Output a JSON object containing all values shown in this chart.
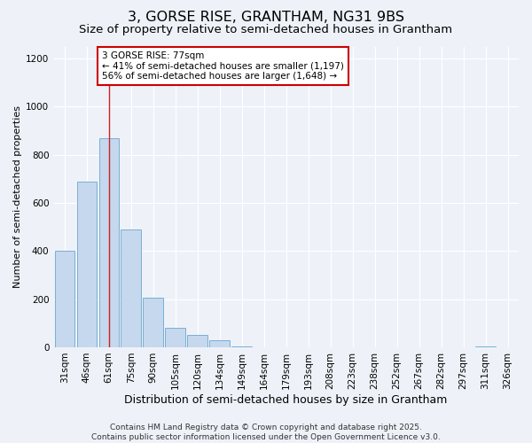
{
  "title": "3, GORSE RISE, GRANTHAM, NG31 9BS",
  "subtitle": "Size of property relative to semi-detached houses in Grantham",
  "xlabel": "Distribution of semi-detached houses by size in Grantham",
  "ylabel": "Number of semi-detached properties",
  "categories": [
    "31sqm",
    "46sqm",
    "61sqm",
    "75sqm",
    "90sqm",
    "105sqm",
    "120sqm",
    "134sqm",
    "149sqm",
    "164sqm",
    "179sqm",
    "193sqm",
    "208sqm",
    "223sqm",
    "238sqm",
    "252sqm",
    "267sqm",
    "282sqm",
    "297sqm",
    "311sqm",
    "326sqm"
  ],
  "values": [
    400,
    690,
    870,
    490,
    205,
    80,
    50,
    30,
    5,
    0,
    0,
    0,
    0,
    0,
    0,
    0,
    0,
    0,
    0,
    5,
    0
  ],
  "bar_color": "#c5d8ed",
  "bar_edge_color": "#7aafd4",
  "property_bin_index": 2,
  "annotation_line1": "3 GORSE RISE: 77sqm",
  "annotation_line2": "← 41% of semi-detached houses are smaller (1,197)",
  "annotation_line3": "56% of semi-detached houses are larger (1,648) →",
  "annotation_box_color": "#ffffff",
  "annotation_box_edge": "#cc0000",
  "vline_color": "#cc2222",
  "ylim": [
    0,
    1250
  ],
  "yticks": [
    0,
    200,
    400,
    600,
    800,
    1000,
    1200
  ],
  "background_color": "#eef2f8",
  "grid_color": "#ffffff",
  "footer": "Contains HM Land Registry data © Crown copyright and database right 2025.\nContains public sector information licensed under the Open Government Licence v3.0.",
  "title_fontsize": 11.5,
  "subtitle_fontsize": 9.5,
  "ylabel_fontsize": 8,
  "xlabel_fontsize": 9,
  "tick_fontsize": 7.5,
  "annotation_fontsize": 7.5,
  "footer_fontsize": 6.5
}
